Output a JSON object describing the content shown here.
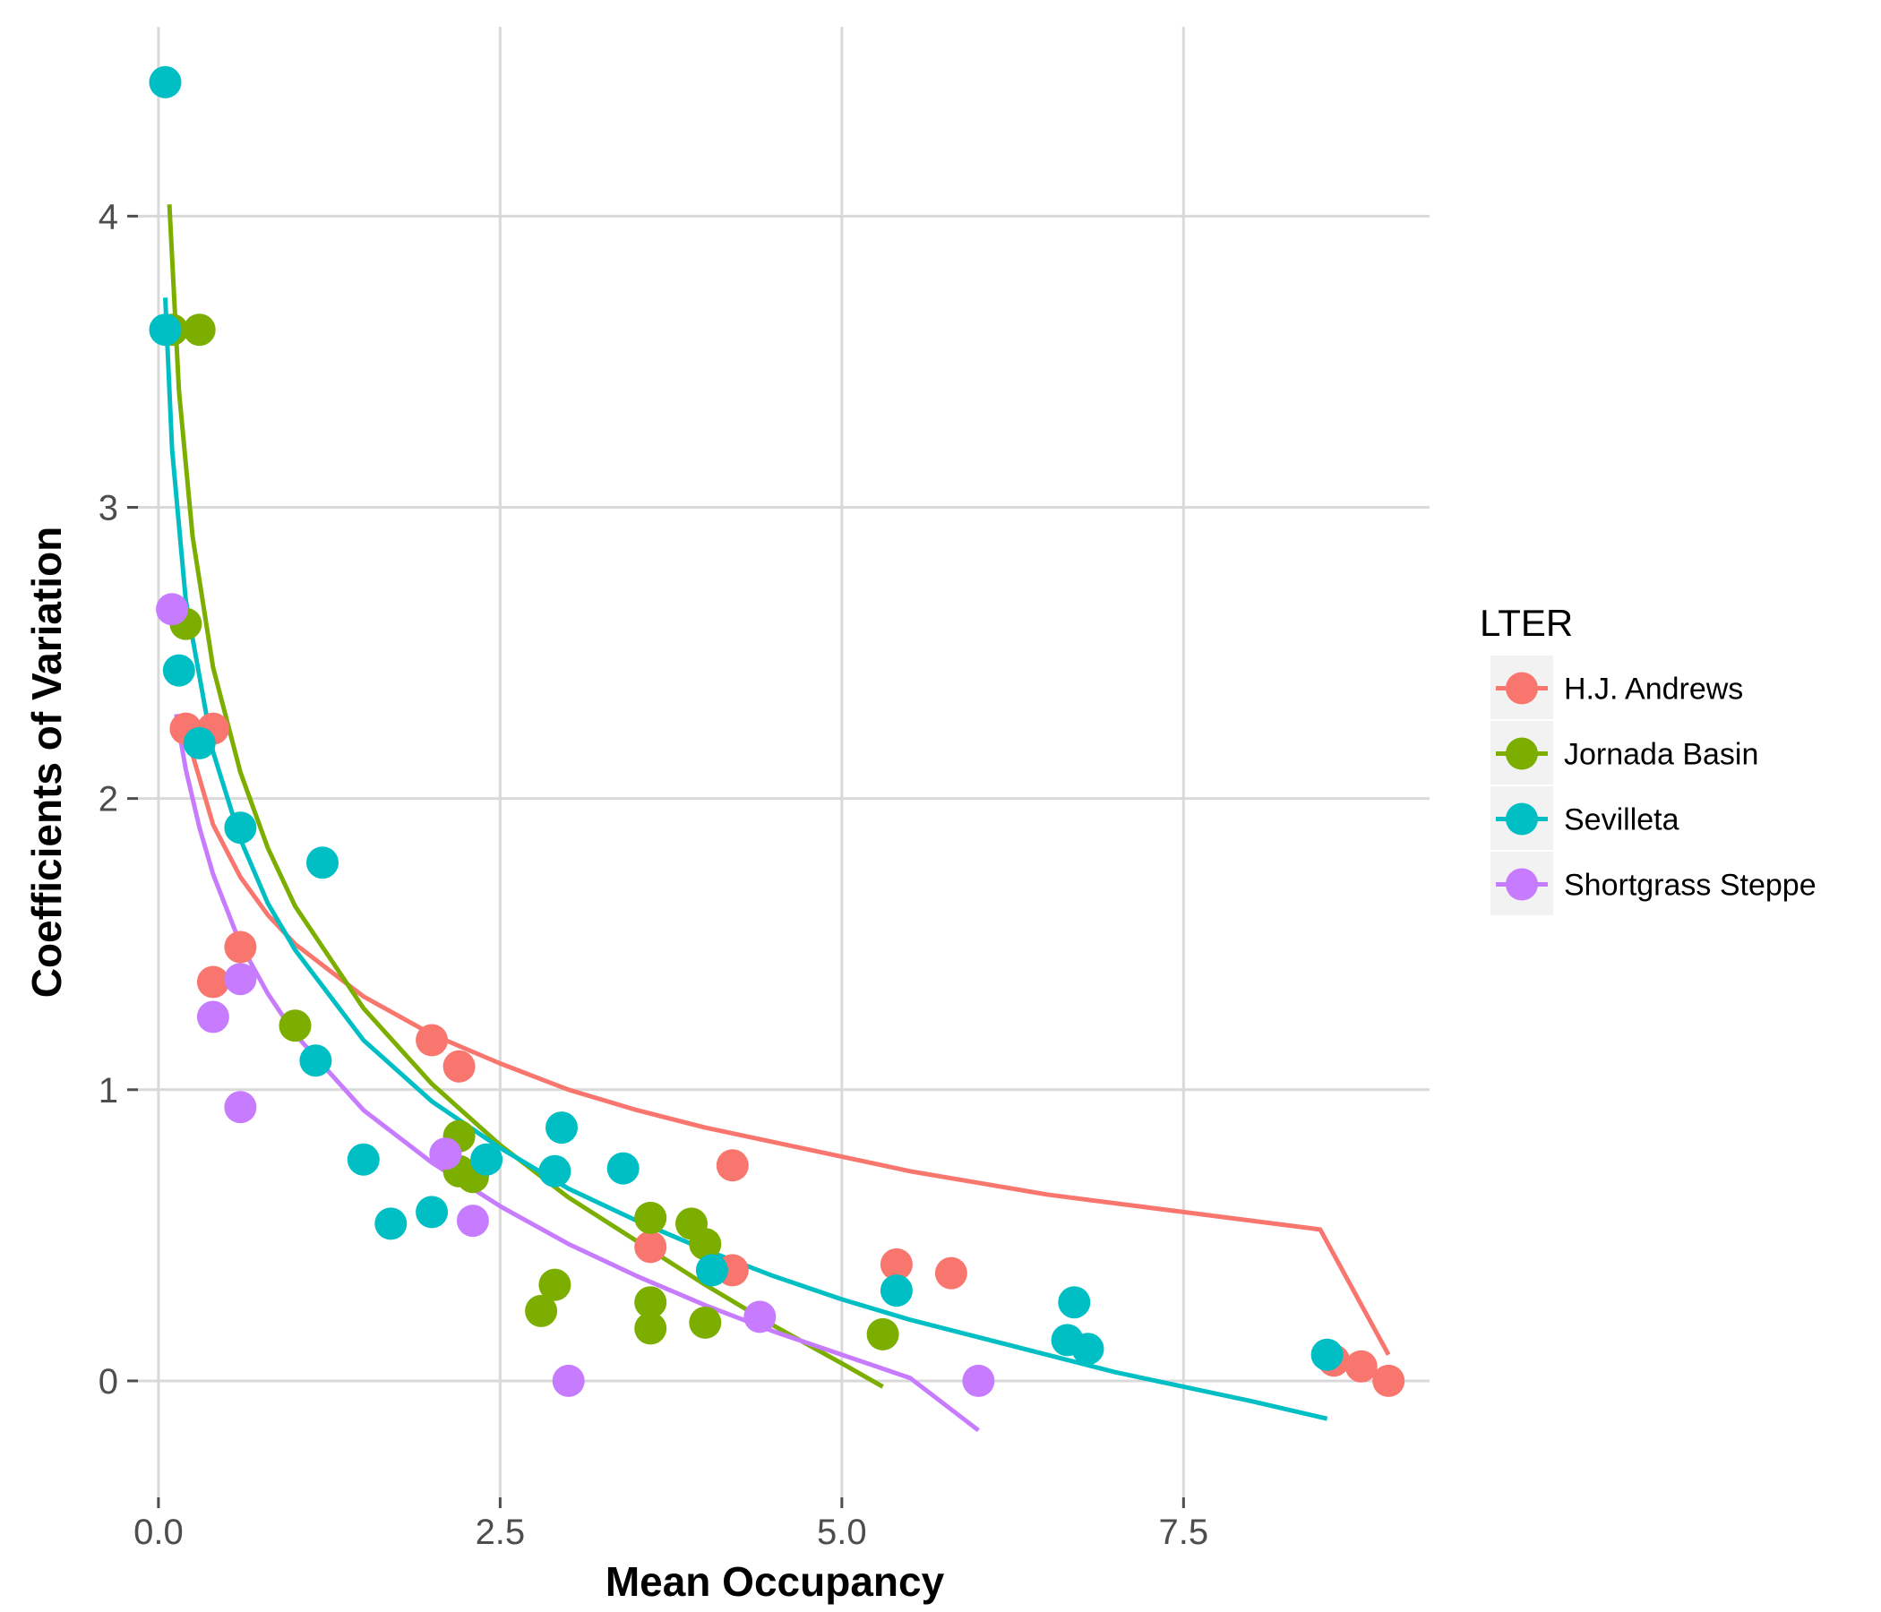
{
  "chart_data": {
    "type": "scatter",
    "xlabel": "Mean Occupancy",
    "ylabel": "Coefficients of Variation",
    "xlim": [
      -0.15,
      9.3
    ],
    "ylim": [
      -0.4,
      4.65
    ],
    "x_ticks": [
      0.0,
      2.5,
      5.0,
      7.5
    ],
    "x_tick_labels": [
      "0.0",
      "2.5",
      "5.0",
      "7.5"
    ],
    "y_ticks": [
      0,
      1,
      2,
      3,
      4
    ],
    "y_tick_labels": [
      "0",
      "1",
      "2",
      "3",
      "4"
    ],
    "grid": true,
    "legend": {
      "title": "LTER",
      "position": "right"
    },
    "series": [
      {
        "name": "H.J. Andrews",
        "color": "#F8766D",
        "points": [
          [
            0.2,
            2.24
          ],
          [
            0.4,
            2.24
          ],
          [
            0.4,
            1.37
          ],
          [
            0.6,
            1.49
          ],
          [
            2.0,
            1.17
          ],
          [
            2.2,
            1.08
          ],
          [
            3.6,
            0.46
          ],
          [
            4.2,
            0.74
          ],
          [
            4.2,
            0.38
          ],
          [
            5.4,
            0.4
          ],
          [
            5.8,
            0.37
          ],
          [
            8.6,
            0.07
          ],
          [
            8.8,
            0.05
          ],
          [
            9.0,
            0.0
          ]
        ],
        "fit": [
          [
            0.2,
            2.23
          ],
          [
            0.4,
            1.91
          ],
          [
            0.6,
            1.73
          ],
          [
            0.8,
            1.6
          ],
          [
            1.0,
            1.5
          ],
          [
            1.5,
            1.32
          ],
          [
            2.0,
            1.19
          ],
          [
            2.5,
            1.09
          ],
          [
            3.0,
            1.0
          ],
          [
            3.5,
            0.93
          ],
          [
            4.0,
            0.87
          ],
          [
            4.5,
            0.82
          ],
          [
            5.0,
            0.77
          ],
          [
            5.5,
            0.72
          ],
          [
            6.0,
            0.68
          ],
          [
            6.5,
            0.64
          ],
          [
            7.0,
            0.61
          ],
          [
            7.5,
            0.58
          ],
          [
            8.0,
            0.55
          ],
          [
            8.5,
            0.52
          ],
          [
            9.0,
            0.09
          ]
        ]
      },
      {
        "name": "Jornada Basin",
        "color": "#7CAE00",
        "points": [
          [
            0.1,
            3.61
          ],
          [
            0.3,
            3.61
          ],
          [
            0.2,
            2.6
          ],
          [
            1.0,
            1.22
          ],
          [
            2.2,
            0.84
          ],
          [
            2.2,
            0.72
          ],
          [
            2.3,
            0.7
          ],
          [
            2.9,
            0.33
          ],
          [
            2.8,
            0.24
          ],
          [
            3.6,
            0.56
          ],
          [
            3.6,
            0.27
          ],
          [
            3.6,
            0.18
          ],
          [
            3.9,
            0.54
          ],
          [
            4.0,
            0.47
          ],
          [
            4.0,
            0.2
          ],
          [
            5.3,
            0.16
          ]
        ],
        "fit": [
          [
            0.08,
            4.04
          ],
          [
            0.15,
            3.4
          ],
          [
            0.25,
            2.9
          ],
          [
            0.4,
            2.45
          ],
          [
            0.6,
            2.09
          ],
          [
            0.8,
            1.83
          ],
          [
            1.0,
            1.63
          ],
          [
            1.5,
            1.28
          ],
          [
            2.0,
            1.02
          ],
          [
            2.5,
            0.81
          ],
          [
            3.0,
            0.63
          ],
          [
            3.5,
            0.48
          ],
          [
            4.0,
            0.33
          ],
          [
            4.5,
            0.19
          ],
          [
            5.0,
            0.06
          ],
          [
            5.3,
            -0.02
          ]
        ]
      },
      {
        "name": "Sevilleta",
        "color": "#00BFC4",
        "points": [
          [
            0.05,
            4.46
          ],
          [
            0.05,
            3.61
          ],
          [
            0.15,
            2.44
          ],
          [
            0.3,
            2.19
          ],
          [
            0.6,
            1.9
          ],
          [
            1.2,
            1.78
          ],
          [
            1.15,
            1.1
          ],
          [
            1.5,
            0.76
          ],
          [
            1.7,
            0.54
          ],
          [
            2.0,
            0.58
          ],
          [
            2.4,
            0.76
          ],
          [
            2.9,
            0.72
          ],
          [
            2.95,
            0.87
          ],
          [
            3.4,
            0.73
          ],
          [
            4.05,
            0.38
          ],
          [
            5.4,
            0.31
          ],
          [
            6.7,
            0.27
          ],
          [
            6.65,
            0.14
          ],
          [
            6.8,
            0.11
          ],
          [
            8.55,
            0.09
          ]
        ],
        "fit": [
          [
            0.05,
            3.72
          ],
          [
            0.1,
            3.2
          ],
          [
            0.2,
            2.68
          ],
          [
            0.4,
            2.16
          ],
          [
            0.6,
            1.86
          ],
          [
            0.8,
            1.64
          ],
          [
            1.0,
            1.48
          ],
          [
            1.5,
            1.17
          ],
          [
            2.0,
            0.96
          ],
          [
            2.5,
            0.8
          ],
          [
            3.0,
            0.66
          ],
          [
            3.5,
            0.55
          ],
          [
            4.0,
            0.45
          ],
          [
            4.5,
            0.36
          ],
          [
            5.0,
            0.28
          ],
          [
            5.5,
            0.21
          ],
          [
            6.0,
            0.15
          ],
          [
            6.5,
            0.09
          ],
          [
            7.0,
            0.03
          ],
          [
            7.5,
            -0.02
          ],
          [
            8.0,
            -0.07
          ],
          [
            8.55,
            -0.13
          ]
        ]
      },
      {
        "name": "Shortgrass Steppe",
        "color": "#C77CFF",
        "points": [
          [
            0.1,
            2.65
          ],
          [
            0.6,
            1.38
          ],
          [
            0.4,
            1.25
          ],
          [
            0.6,
            0.94
          ],
          [
            2.1,
            0.78
          ],
          [
            2.3,
            0.55
          ],
          [
            3.0,
            0.0
          ],
          [
            4.4,
            0.22
          ],
          [
            6.0,
            0.0
          ]
        ],
        "fit": [
          [
            0.13,
            2.29
          ],
          [
            0.2,
            2.1
          ],
          [
            0.3,
            1.9
          ],
          [
            0.4,
            1.74
          ],
          [
            0.6,
            1.5
          ],
          [
            0.8,
            1.33
          ],
          [
            1.0,
            1.19
          ],
          [
            1.5,
            0.93
          ],
          [
            2.0,
            0.75
          ],
          [
            2.5,
            0.6
          ],
          [
            3.0,
            0.47
          ],
          [
            3.5,
            0.36
          ],
          [
            4.0,
            0.26
          ],
          [
            4.5,
            0.17
          ],
          [
            5.0,
            0.09
          ],
          [
            5.5,
            0.01
          ],
          [
            6.0,
            -0.17
          ]
        ]
      }
    ]
  }
}
